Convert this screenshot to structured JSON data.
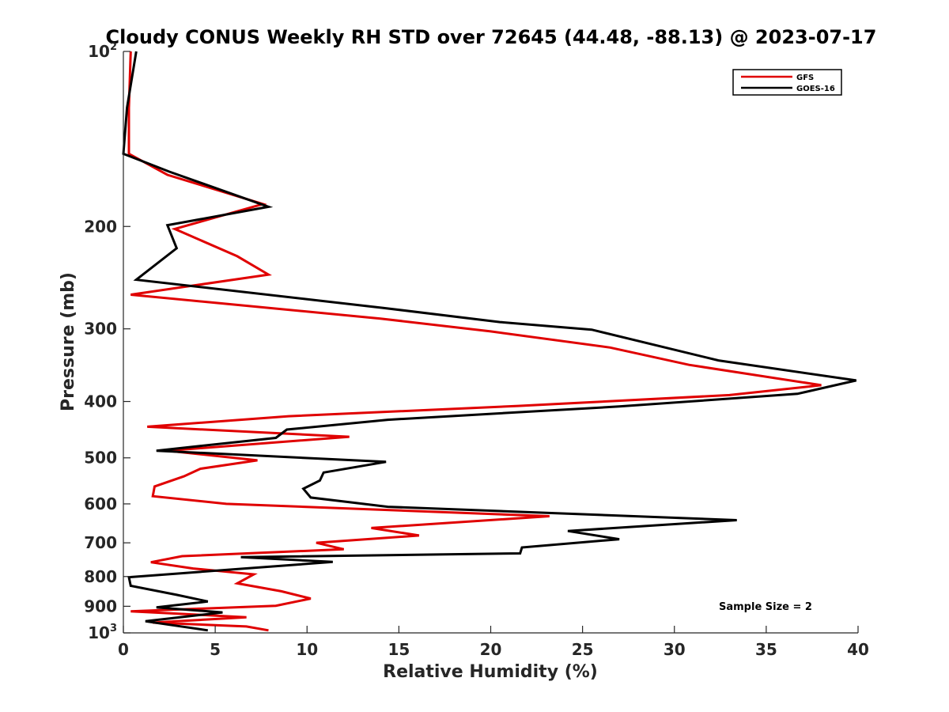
{
  "chart_data": {
    "type": "line",
    "title": "Cloudy CONUS Weekly RH STD over 72645 (44.48, -88.13) @ 2023-07-17",
    "xlabel": "Relative Humidity (%)",
    "ylabel": "Pressure (mb)",
    "xlim": [
      0,
      40
    ],
    "ylim": [
      100,
      1000
    ],
    "y_scale": "log",
    "y_reversed": true,
    "grid": false,
    "legend_position": "top-right",
    "x_ticks": [
      {
        "value": 0,
        "label": "0"
      },
      {
        "value": 5,
        "label": "5"
      },
      {
        "value": 10,
        "label": "10"
      },
      {
        "value": 15,
        "label": "15"
      },
      {
        "value": 20,
        "label": "20"
      },
      {
        "value": 25,
        "label": "25"
      },
      {
        "value": 30,
        "label": "30"
      },
      {
        "value": 35,
        "label": "35"
      },
      {
        "value": 40,
        "label": "40"
      }
    ],
    "y_ticks": [
      {
        "value": 100,
        "base": "10",
        "exp": "2"
      },
      {
        "value": 200,
        "label": "200"
      },
      {
        "value": 300,
        "label": "300"
      },
      {
        "value": 400,
        "label": "400"
      },
      {
        "value": 500,
        "label": "500"
      },
      {
        "value": 600,
        "label": "600"
      },
      {
        "value": 700,
        "label": "700"
      },
      {
        "value": 800,
        "label": "800"
      },
      {
        "value": 900,
        "label": "900"
      },
      {
        "value": 1000,
        "base": "10",
        "exp": "3"
      }
    ],
    "annotation": "Sample Size = 2",
    "series": [
      {
        "name": "GFS",
        "color": "#e00000",
        "points": [
          [
            0.4,
            100
          ],
          [
            0.3,
            125
          ],
          [
            0.3,
            150
          ],
          [
            2.4,
            163
          ],
          [
            7.6,
            183
          ],
          [
            2.8,
            202
          ],
          [
            6.2,
            225
          ],
          [
            7.9,
            242
          ],
          [
            0.4,
            262
          ],
          [
            14.0,
            288
          ],
          [
            20.0,
            303
          ],
          [
            26.5,
            323
          ],
          [
            30.8,
            346
          ],
          [
            38.0,
            375
          ],
          [
            33.0,
            390
          ],
          [
            21.5,
            407
          ],
          [
            9.0,
            424
          ],
          [
            1.3,
            442
          ],
          [
            12.3,
            460
          ],
          [
            2.4,
            486
          ],
          [
            7.3,
            505
          ],
          [
            4.2,
            522
          ],
          [
            3.3,
            538
          ],
          [
            1.7,
            560
          ],
          [
            1.6,
            582
          ],
          [
            5.6,
            600
          ],
          [
            23.2,
            630
          ],
          [
            13.5,
            660
          ],
          [
            16.1,
            680
          ],
          [
            10.5,
            700
          ],
          [
            12.0,
            718
          ],
          [
            3.2,
            738
          ],
          [
            1.5,
            756
          ],
          [
            3.8,
            775
          ],
          [
            7.1,
            793
          ],
          [
            6.2,
            822
          ],
          [
            8.6,
            848
          ],
          [
            10.2,
            873
          ],
          [
            8.3,
            898
          ],
          [
            0.4,
            918
          ],
          [
            6.7,
            940
          ],
          [
            1.6,
            960
          ],
          [
            6.7,
            975
          ],
          [
            7.9,
            990
          ]
        ]
      },
      {
        "name": "GOES-16",
        "color": "#000000",
        "points": [
          [
            0.7,
            100
          ],
          [
            0.2,
            125
          ],
          [
            0.0,
            150
          ],
          [
            2.5,
            161
          ],
          [
            7.9,
            185
          ],
          [
            2.4,
            199
          ],
          [
            2.9,
            218
          ],
          [
            0.7,
            247
          ],
          [
            14.1,
            276
          ],
          [
            20.5,
            292
          ],
          [
            25.5,
            301
          ],
          [
            32.4,
            340
          ],
          [
            39.9,
            368
          ],
          [
            36.7,
            388
          ],
          [
            27.0,
            408
          ],
          [
            14.4,
            430
          ],
          [
            8.9,
            447
          ],
          [
            8.3,
            462
          ],
          [
            1.8,
            486
          ],
          [
            14.3,
            508
          ],
          [
            10.9,
            530
          ],
          [
            10.7,
            547
          ],
          [
            9.8,
            565
          ],
          [
            10.2,
            585
          ],
          [
            14.4,
            607
          ],
          [
            33.4,
            640
          ],
          [
            24.2,
            668
          ],
          [
            27.0,
            690
          ],
          [
            21.7,
            713
          ],
          [
            21.6,
            730
          ],
          [
            6.4,
            741
          ],
          [
            11.4,
            755
          ],
          [
            0.3,
            802
          ],
          [
            0.4,
            830
          ],
          [
            2.9,
            860
          ],
          [
            4.6,
            883
          ],
          [
            1.8,
            904
          ],
          [
            5.4,
            922
          ],
          [
            1.2,
            955
          ],
          [
            4.6,
            990
          ]
        ]
      }
    ]
  }
}
